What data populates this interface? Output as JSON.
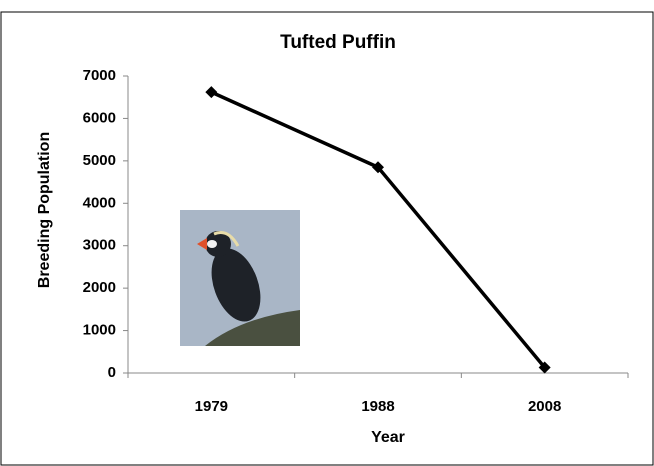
{
  "chart_data": {
    "type": "line",
    "title": "Tufted Puffin",
    "x_label": "Year",
    "y_label": "Breeding Population",
    "categories": [
      "1979",
      "1988",
      "2008"
    ],
    "values": [
      6620,
      4850,
      130
    ],
    "color": "#000000",
    "ylim": [
      0,
      7000
    ],
    "yticks": [
      0,
      1000,
      2000,
      3000,
      4000,
      5000,
      6000,
      7000
    ]
  }
}
